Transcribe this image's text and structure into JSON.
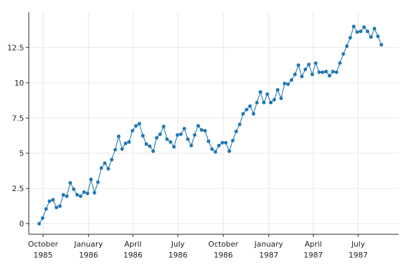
{
  "chart_data": {
    "type": "line",
    "title": "",
    "xlabel": "",
    "ylabel": "",
    "x_axis": {
      "type": "date",
      "range": [
        "1985-09-02",
        "1987-09-21"
      ],
      "ticks": [
        {
          "date": "1985-10-01",
          "line1": "October",
          "line2": "1985"
        },
        {
          "date": "1986-01-01",
          "line1": "January",
          "line2": "1986"
        },
        {
          "date": "1986-04-01",
          "line1": "April",
          "line2": "1986"
        },
        {
          "date": "1986-07-01",
          "line1": "July",
          "line2": "1986"
        },
        {
          "date": "1986-10-01",
          "line1": "October",
          "line2": "1986"
        },
        {
          "date": "1987-01-01",
          "line1": "January",
          "line2": "1987"
        },
        {
          "date": "1987-04-01",
          "line1": "April",
          "line2": "1987"
        },
        {
          "date": "1987-07-01",
          "line1": "July",
          "line2": "1987"
        }
      ]
    },
    "y_axis": {
      "range": [
        -0.75,
        15
      ],
      "ticks": [
        {
          "value": 0,
          "label": "0"
        },
        {
          "value": 2.5,
          "label": "2.5"
        },
        {
          "value": 5,
          "label": "5"
        },
        {
          "value": 7.5,
          "label": "7.5"
        },
        {
          "value": 10,
          "label": "10"
        },
        {
          "value": 12.5,
          "label": "12.5"
        }
      ]
    },
    "grid": true,
    "legend": "none",
    "series": [
      {
        "color": "#1f77b4",
        "marker": "circle",
        "start_date": "1985-09-23",
        "interval_days": 7,
        "values": [
          0.0,
          0.4,
          1.05,
          1.6,
          1.7,
          1.15,
          1.25,
          2.05,
          1.95,
          2.9,
          2.45,
          2.05,
          1.95,
          2.25,
          2.15,
          3.15,
          2.2,
          2.95,
          3.95,
          4.3,
          3.9,
          4.55,
          5.25,
          6.2,
          5.3,
          5.7,
          5.8,
          6.6,
          6.95,
          7.1,
          6.25,
          5.65,
          5.5,
          5.15,
          6.1,
          6.35,
          6.9,
          6.0,
          5.8,
          5.45,
          6.3,
          6.35,
          6.75,
          6.0,
          5.55,
          6.3,
          6.95,
          6.65,
          6.6,
          5.85,
          5.3,
          5.1,
          5.55,
          5.75,
          5.75,
          5.15,
          5.9,
          6.55,
          7.05,
          7.8,
          8.1,
          8.35,
          7.8,
          8.6,
          9.35,
          8.6,
          9.2,
          8.6,
          8.8,
          9.5,
          8.9,
          9.95,
          9.9,
          10.2,
          10.6,
          11.25,
          10.45,
          10.95,
          11.3,
          10.6,
          11.4,
          10.75,
          10.75,
          10.8,
          10.5,
          10.8,
          10.75,
          11.4,
          12.05,
          12.6,
          13.2,
          14.0,
          13.6,
          13.65,
          13.95,
          13.65,
          13.25,
          13.85,
          13.3,
          12.7
        ]
      }
    ]
  }
}
